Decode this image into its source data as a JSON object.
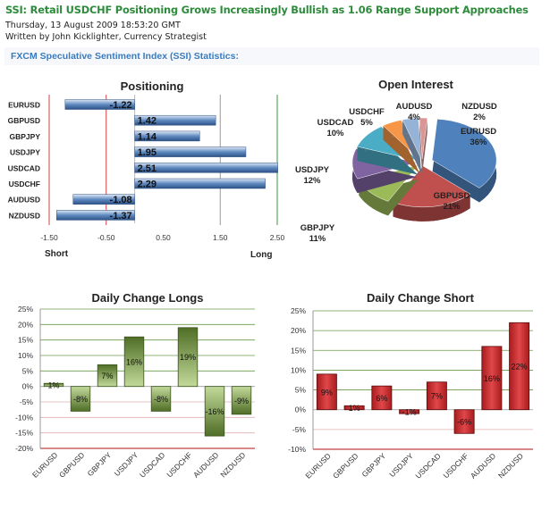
{
  "headline": "SSI: Retail USDCHF Positioning Grows Increasingly Bullish as 1.06 Range Support Approaches",
  "date": "Thursday, 13 August 2009 18:53:20 GMT",
  "byline": "Written by John Kicklighter, Currency Strategist",
  "section_title": "FXCM Speculative Sentiment Index (SSI) Statistics:",
  "chart_data": [
    {
      "type": "bar",
      "orientation": "horizontal",
      "title": "Positioning",
      "categories": [
        "EURUSD",
        "GBPUSD",
        "GBPJPY",
        "USDJPY",
        "USDCAD",
        "USDCHF",
        "AUDUSD",
        "NZDUSD"
      ],
      "values": [
        -1.22,
        1.42,
        1.14,
        1.95,
        2.51,
        2.29,
        -1.08,
        -1.37
      ],
      "data_labels": [
        "-1.22",
        "1.42",
        "1.14",
        "1.95",
        "2.51",
        "2.29",
        "-1.08",
        "-1.37"
      ],
      "xlim": [
        -1.5,
        2.5
      ],
      "xticks": [
        "-1.50",
        "-0.50",
        "0.50",
        "1.50",
        "2.50"
      ],
      "short_label": "Short",
      "long_label": "Long",
      "bar_color": "#3d6aa5"
    },
    {
      "type": "pie",
      "title": "Open Interest",
      "categories": [
        "EURUSD",
        "GBPUSD",
        "GBPJPY",
        "USDJPY",
        "USDCAD",
        "USDCHF",
        "AUDUSD",
        "NZDUSD"
      ],
      "values": [
        36,
        21,
        11,
        12,
        10,
        5,
        4,
        2
      ],
      "data_labels": [
        "36%",
        "21%",
        "11%",
        "12%",
        "10%",
        "5%",
        "4%",
        "2%"
      ],
      "colors": [
        "#4f81bd",
        "#c0504d",
        "#9bbb59",
        "#8064a2",
        "#4bacc6",
        "#f79646",
        "#95b3d7",
        "#d99694"
      ]
    },
    {
      "type": "bar",
      "title": "Daily Change Longs",
      "categories": [
        "EURUSD",
        "GBPUSD",
        "GBPJPY",
        "USDJPY",
        "USDCAD",
        "USDCHF",
        "AUDUSD",
        "NZDUSD"
      ],
      "values": [
        1,
        -8,
        7,
        16,
        -8,
        19,
        -16,
        -9
      ],
      "data_labels": [
        "1%",
        "-8%",
        "7%",
        "16%",
        "-8%",
        "19%",
        "-16%",
        "-9%"
      ],
      "ylim": [
        -20,
        25
      ],
      "yticks": [
        "25%",
        "20%",
        "15%",
        "10%",
        "5%",
        "0%",
        "-5%",
        "-10%",
        "-15%",
        "-20%"
      ],
      "bar_color": "#5a7a30"
    },
    {
      "type": "bar",
      "title": "Daily Change Short",
      "categories": [
        "EURUSD",
        "GBPUSD",
        "GBPJPY",
        "USDJPY",
        "USDCAD",
        "USDCHF",
        "AUDUSD",
        "NZDUSD"
      ],
      "values": [
        9,
        1,
        6,
        -1,
        7,
        -6,
        16,
        22
      ],
      "data_labels": [
        "9%",
        "1%",
        "6%",
        "-1%",
        "7%",
        "-6%",
        "16%",
        "22%"
      ],
      "ylim": [
        -10,
        25
      ],
      "yticks": [
        "25%",
        "20%",
        "15%",
        "10%",
        "5%",
        "0%",
        "-5%",
        "-10%"
      ],
      "bar_color": "#c0282a"
    }
  ]
}
